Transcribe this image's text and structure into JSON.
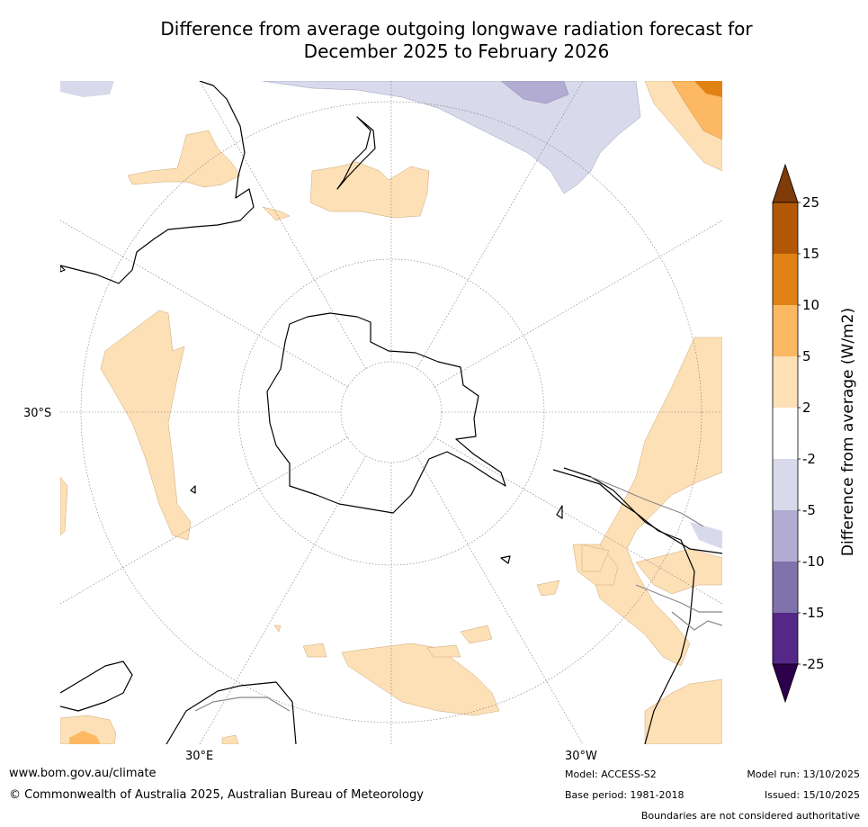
{
  "header": {
    "title_line1": "Difference from average outgoing longwave radiation forecast for",
    "title_line2": "December 2025 to February 2026"
  },
  "map": {
    "lat_label": "30°S",
    "lon_labels": [
      "30°E",
      "30°W"
    ]
  },
  "colorbar": {
    "label": "Difference from average (W/m2)",
    "ticks": [
      "25",
      "15",
      "10",
      "5",
      "2",
      "-2",
      "-5",
      "-10",
      "-15",
      "-25"
    ],
    "colors": [
      "#7f3b08",
      "#b35806",
      "#e08214",
      "#fdb863",
      "#fee0b6",
      "#ffffff",
      "#d8daeb",
      "#b2abd2",
      "#8073ac",
      "#542788",
      "#2d004b"
    ]
  },
  "footer": {
    "url": "www.bom.gov.au/climate",
    "copyright": "© Commonwealth of Australia 2025, Australian Bureau of Meteorology",
    "model": "Model: ACCESS-S2",
    "base_period": "Base period: 1981-2018",
    "model_run": "Model run: 13/10/2025",
    "issued": "Issued: 15/10/2025",
    "disclaimer": "Boundaries are not considered authoritative"
  }
}
